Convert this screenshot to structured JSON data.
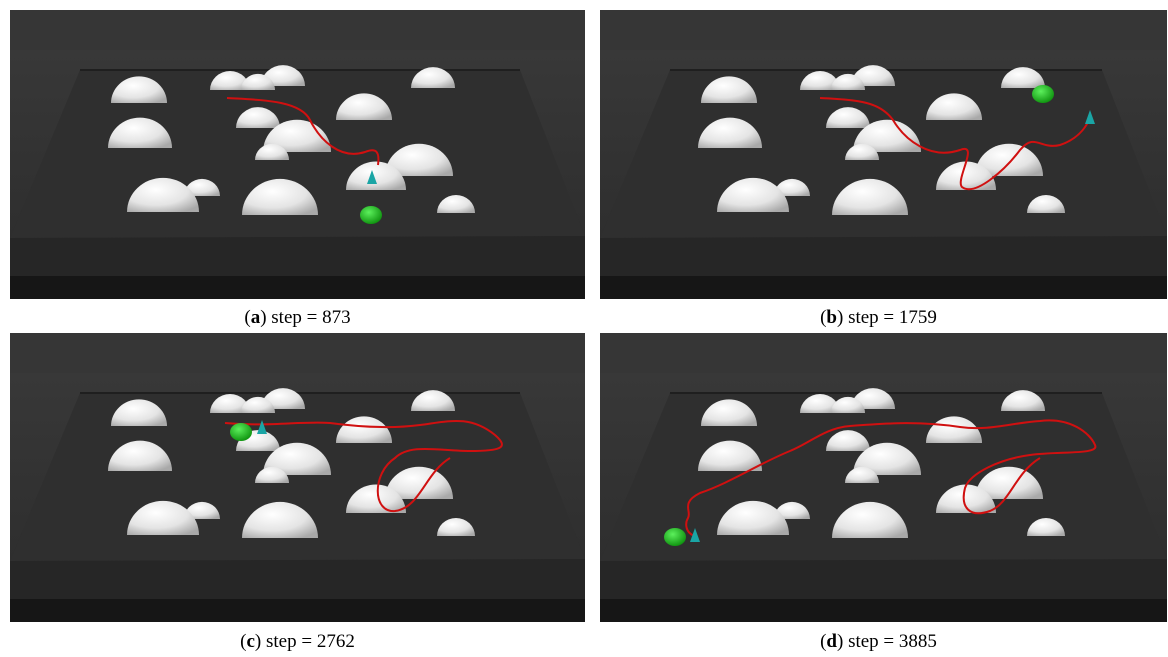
{
  "panels": [
    {
      "open": "(",
      "letter": "a",
      "close": ")",
      "label": "step =",
      "step": 873
    },
    {
      "open": "(",
      "letter": "b",
      "close": ")",
      "label": "step =",
      "step": 1759
    },
    {
      "open": "(",
      "letter": "c",
      "close": ")",
      "label": "step =",
      "step": 2762
    },
    {
      "open": "(",
      "letter": "d",
      "close": ")",
      "label": "step =",
      "step": 3885
    }
  ]
}
